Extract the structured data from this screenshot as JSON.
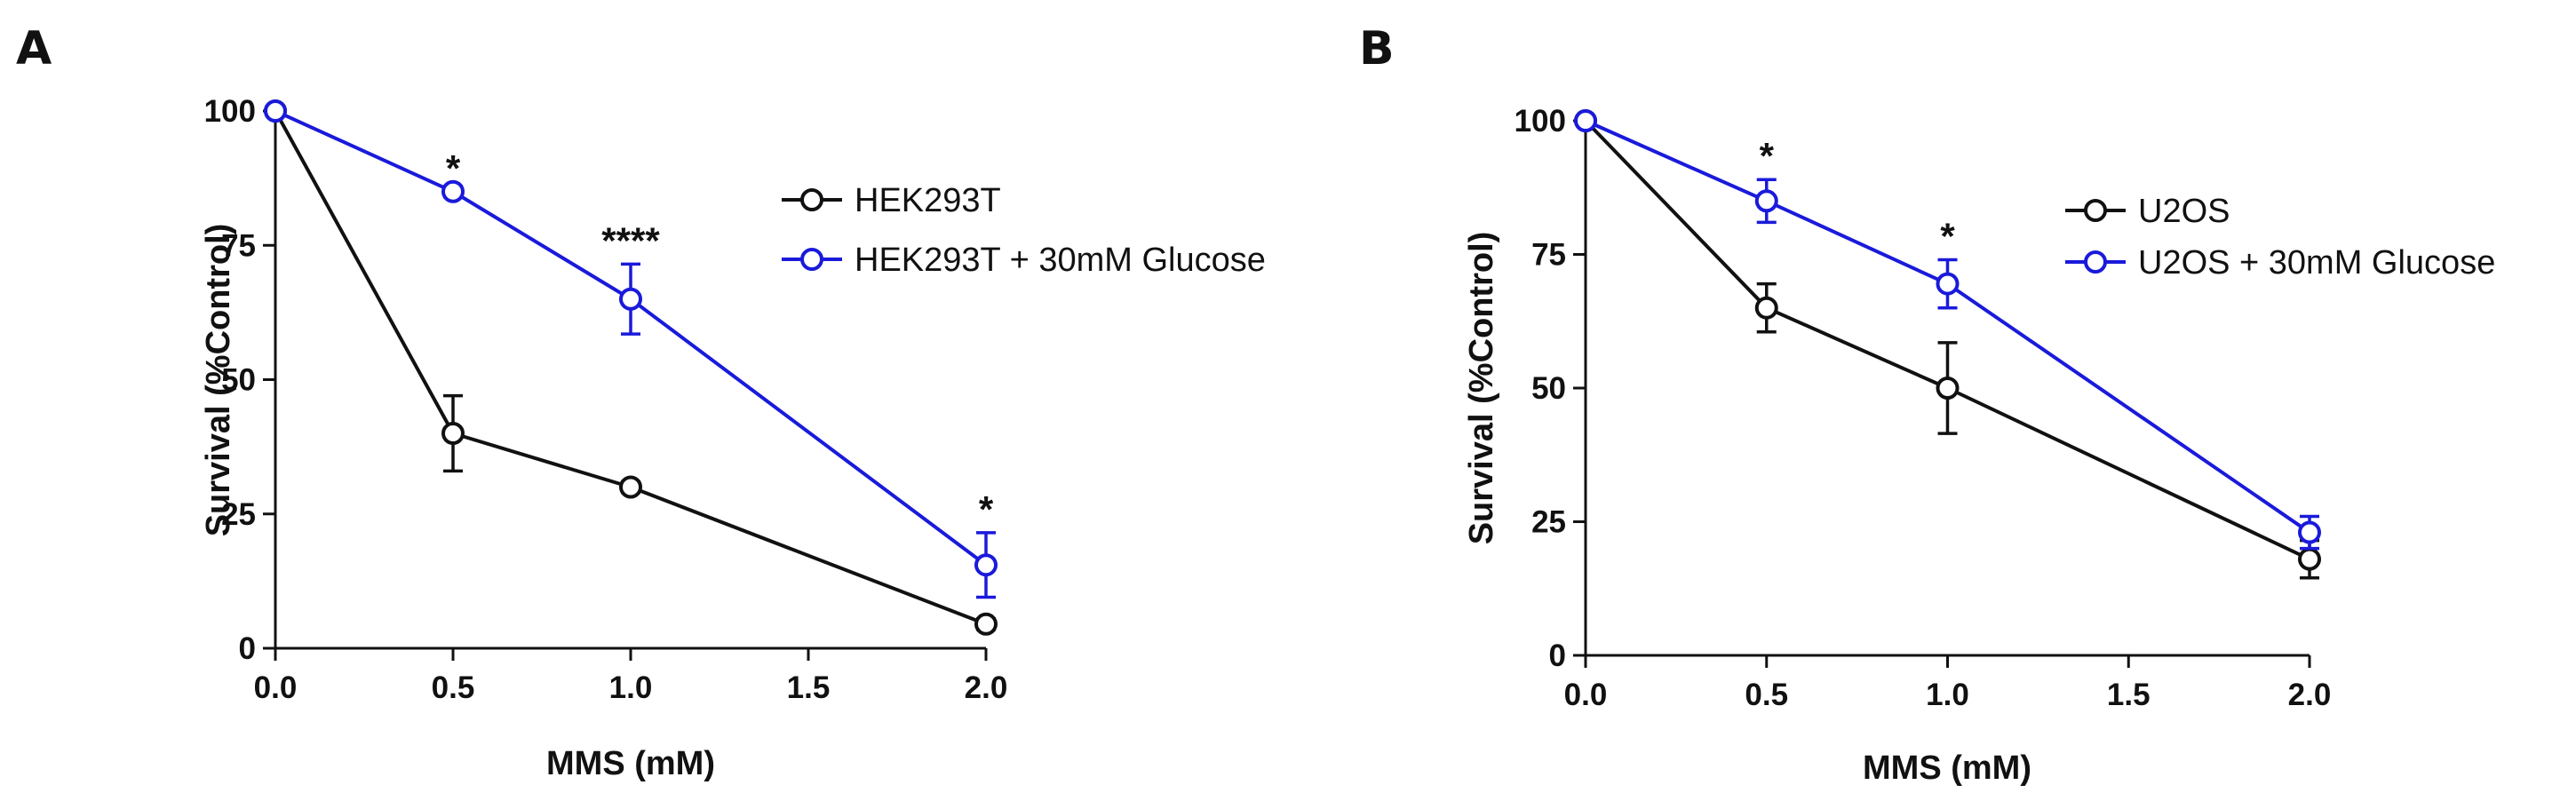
{
  "chart_data": [
    {
      "panel": "A",
      "type": "line",
      "xlabel": "MMS (mM)",
      "ylabel": "Survival (%Control)",
      "xlim": [
        0,
        2
      ],
      "ylim": [
        0,
        100
      ],
      "x_ticks": [
        "0.0",
        "0.5",
        "1.0",
        "1.5",
        "2.0"
      ],
      "y_ticks": [
        "0",
        "25",
        "50",
        "75",
        "100"
      ],
      "x": [
        0,
        0.5,
        1.0,
        2.0
      ],
      "series": [
        {
          "name": "HEK293T",
          "color": "#111111",
          "values": [
            100,
            40,
            30,
            4.5
          ],
          "errors": [
            0,
            7,
            1,
            1
          ]
        },
        {
          "name": "HEK293T + 30mM Glucose",
          "color": "#1a1adb",
          "values": [
            100,
            85,
            65,
            15.5
          ],
          "errors": [
            0,
            1,
            6.5,
            6
          ]
        }
      ],
      "annotations": [
        {
          "x": 0.5,
          "y": 85,
          "text": "*"
        },
        {
          "x": 1.0,
          "y": 71.5,
          "text": "****"
        },
        {
          "x": 2.0,
          "y": 21.5,
          "text": "*"
        }
      ],
      "legend_position": "top-right"
    },
    {
      "panel": "B",
      "type": "line",
      "xlabel": "MMS (mM)",
      "ylabel": "Survival (%Control)",
      "xlim": [
        0,
        2
      ],
      "ylim": [
        0,
        100
      ],
      "x_ticks": [
        "0.0",
        "0.5",
        "1.0",
        "1.5",
        "2.0"
      ],
      "y_ticks": [
        "0",
        "25",
        "50",
        "75",
        "100"
      ],
      "x": [
        0,
        0.5,
        1.0,
        2.0
      ],
      "series": [
        {
          "name": "U2OS",
          "color": "#111111",
          "values": [
            100,
            65,
            50,
            18
          ],
          "errors": [
            0,
            4.5,
            8.5,
            3.5
          ]
        },
        {
          "name": "U2OS + 30mM Glucose",
          "color": "#1a1adb",
          "values": [
            100,
            85,
            69.5,
            23
          ],
          "errors": [
            0,
            4,
            4.5,
            3
          ]
        }
      ],
      "annotations": [
        {
          "x": 0.5,
          "y": 89,
          "text": "*"
        },
        {
          "x": 1.0,
          "y": 74,
          "text": "*"
        }
      ],
      "legend_position": "top-right"
    }
  ]
}
